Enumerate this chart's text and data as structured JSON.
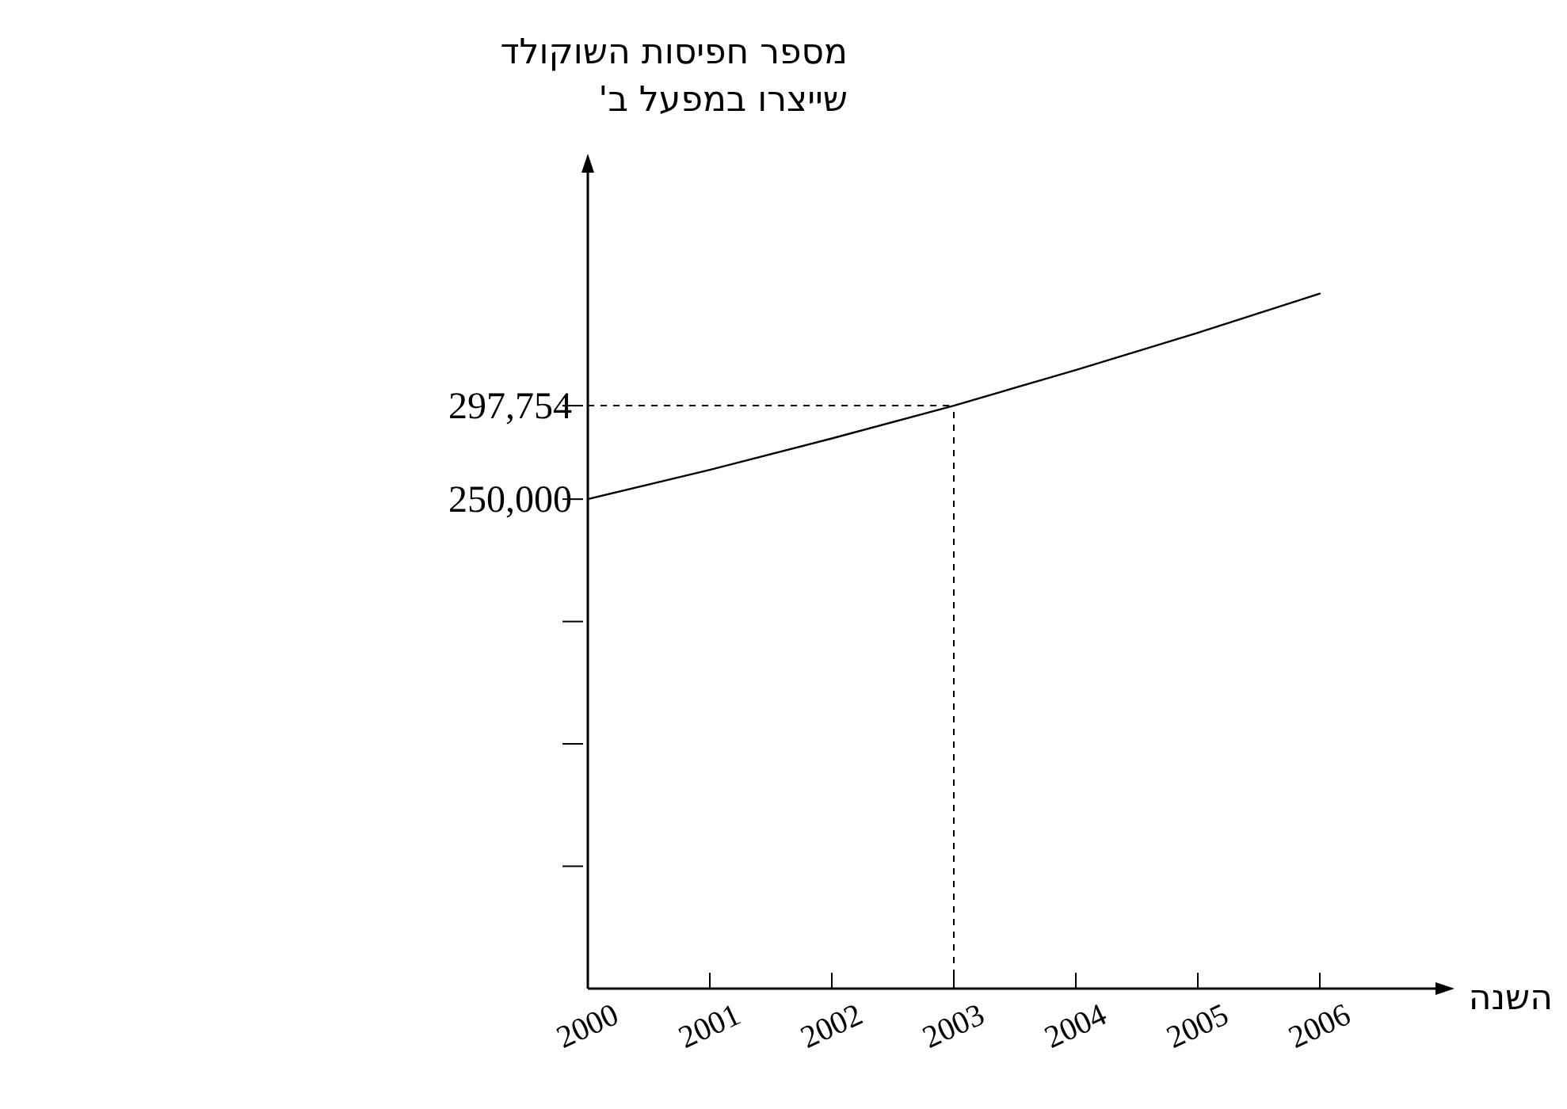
{
  "chart_data": {
    "type": "line",
    "ylabel": "מספר חפיסות השוקולד\nשייצרו במפעל ב'",
    "xlabel": "השנה",
    "x": [
      2000,
      2001,
      2002,
      2003,
      2004,
      2005,
      2006
    ],
    "series": [
      {
        "color": "#000000",
        "values": [
          250000,
          265000,
          281000,
          297754,
          316000,
          335000,
          355000
        ]
      }
    ],
    "xlim": [
      2000,
      2007
    ],
    "xticks": [
      2000,
      2001,
      2002,
      2003,
      2004,
      2005,
      2006
    ],
    "ylim": [
      0,
      420000
    ],
    "yticks": [
      {
        "value": 62500,
        "label": null
      },
      {
        "value": 125000,
        "label": null
      },
      {
        "value": 187500,
        "label": null
      },
      {
        "value": 250000,
        "label": "250,000"
      },
      {
        "value": 297754,
        "label": "297,754"
      }
    ],
    "ref_lines": [
      {
        "axis": "y",
        "value": 297754,
        "line_style": "dashed"
      },
      {
        "axis": "x",
        "value": 2003,
        "line_style": "dashed"
      }
    ],
    "marker": "none",
    "line_style": "solid"
  }
}
